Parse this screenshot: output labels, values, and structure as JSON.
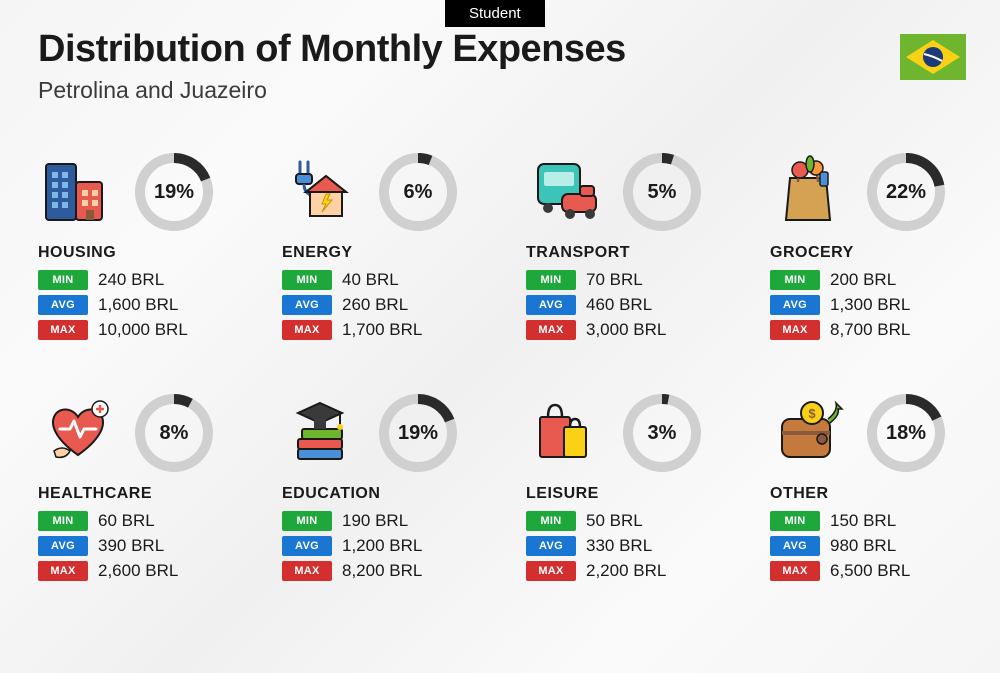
{
  "tag": "Student",
  "title": "Distribution of Monthly Expenses",
  "subtitle": "Petrolina and Juazeiro",
  "currency": "BRL",
  "labels": {
    "min": "MIN",
    "avg": "AVG",
    "max": "MAX"
  },
  "donut": {
    "track_color": "#d0d0d0",
    "fill_color": "#2a2a2a",
    "stroke_width": 10,
    "radius": 34,
    "label_fontsize": 20
  },
  "badge_colors": {
    "min": "#1ea83c",
    "avg": "#1976d2",
    "max": "#d32f2f"
  },
  "flag": {
    "bg": "#6fb52e",
    "diamond": "#fbd116",
    "circle": "#1a3a7a"
  },
  "categories": [
    {
      "key": "housing",
      "name": "HOUSING",
      "pct": 19,
      "min": "240",
      "avg": "1,600",
      "max": "10,000",
      "icon": "buildings"
    },
    {
      "key": "energy",
      "name": "ENERGY",
      "pct": 6,
      "min": "40",
      "avg": "260",
      "max": "1,700",
      "icon": "energy"
    },
    {
      "key": "transport",
      "name": "TRANSPORT",
      "pct": 5,
      "min": "70",
      "avg": "460",
      "max": "3,000",
      "icon": "transport"
    },
    {
      "key": "grocery",
      "name": "GROCERY",
      "pct": 22,
      "min": "200",
      "avg": "1,300",
      "max": "8,700",
      "icon": "grocery"
    },
    {
      "key": "healthcare",
      "name": "HEALTHCARE",
      "pct": 8,
      "min": "60",
      "avg": "390",
      "max": "2,600",
      "icon": "healthcare"
    },
    {
      "key": "education",
      "name": "EDUCATION",
      "pct": 19,
      "min": "190",
      "avg": "1,200",
      "max": "8,200",
      "icon": "education"
    },
    {
      "key": "leisure",
      "name": "LEISURE",
      "pct": 3,
      "min": "50",
      "avg": "330",
      "max": "2,200",
      "icon": "leisure"
    },
    {
      "key": "other",
      "name": "OTHER",
      "pct": 18,
      "min": "150",
      "avg": "980",
      "max": "6,500",
      "icon": "other"
    }
  ]
}
